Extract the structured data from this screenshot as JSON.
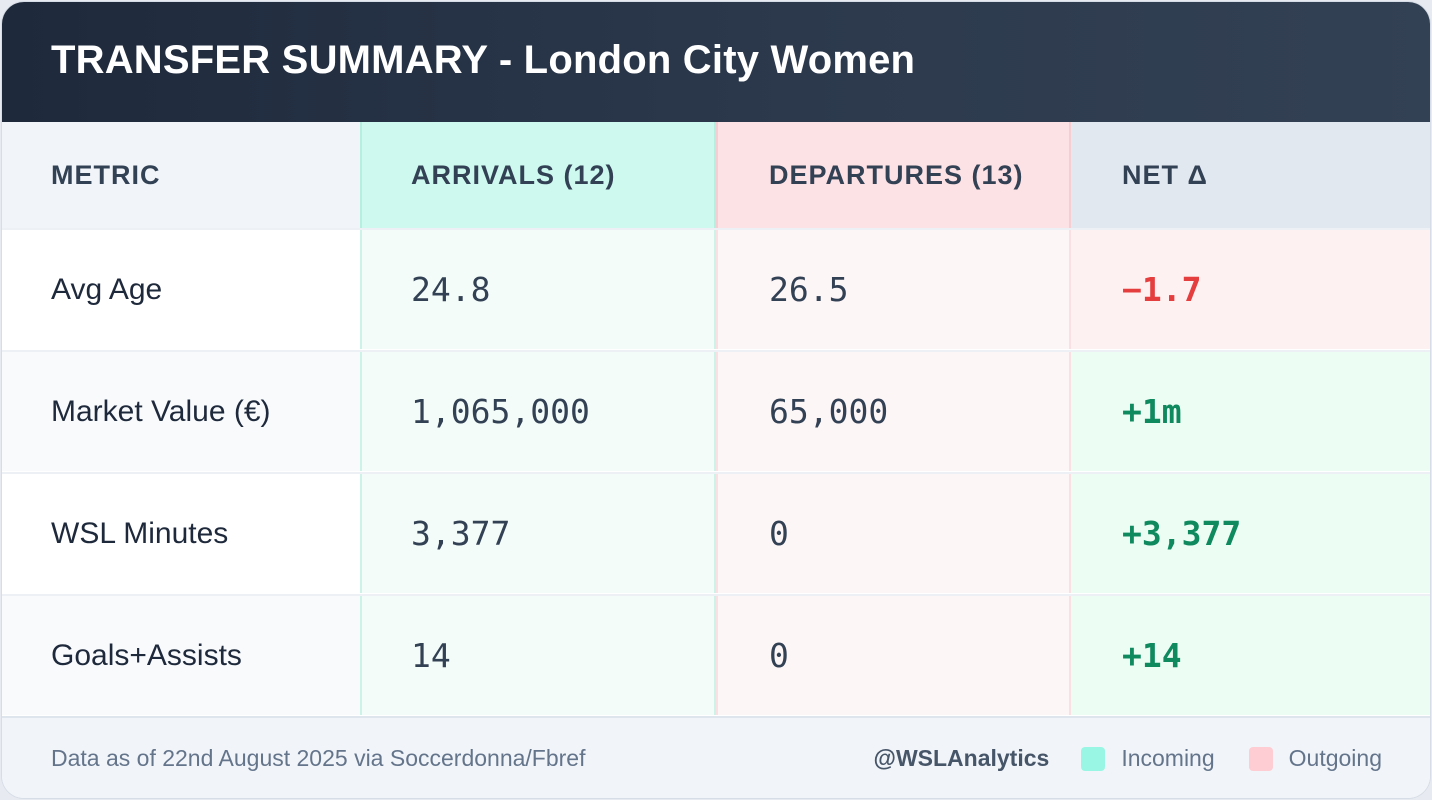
{
  "title": "TRANSFER SUMMARY - London City Women",
  "columns": {
    "metric": "METRIC",
    "arrivals": "ARRIVALS (12)",
    "departures": "DEPARTURES (13)",
    "net": "NET Δ"
  },
  "rows": [
    {
      "metric": "Avg Age",
      "arrivals": "24.8",
      "departures": "26.5",
      "net": "−1.7",
      "net_trend": "negative"
    },
    {
      "metric": "Market Value (€)",
      "arrivals": "1,065,000",
      "departures": "65,000",
      "net": "+1m",
      "net_trend": "positive"
    },
    {
      "metric": "WSL Minutes",
      "arrivals": "3,377",
      "departures": "0",
      "net": "+3,377",
      "net_trend": "positive"
    },
    {
      "metric": "Goals+Assists",
      "arrivals": "14",
      "departures": "0",
      "net": "+14",
      "net_trend": "positive"
    }
  ],
  "footer": {
    "source": "Data as of 22nd August 2025 via Soccerdonna/Fbref",
    "handle": "@WSLAnalytics",
    "legend": [
      {
        "label": "Incoming",
        "color": "#99f6e4"
      },
      {
        "label": "Outgoing",
        "color": "#fecdd3"
      }
    ]
  },
  "colors": {
    "positive": "#0f8a5f",
    "negative": "#e53e3e",
    "header_bg": "#1e293b"
  }
}
